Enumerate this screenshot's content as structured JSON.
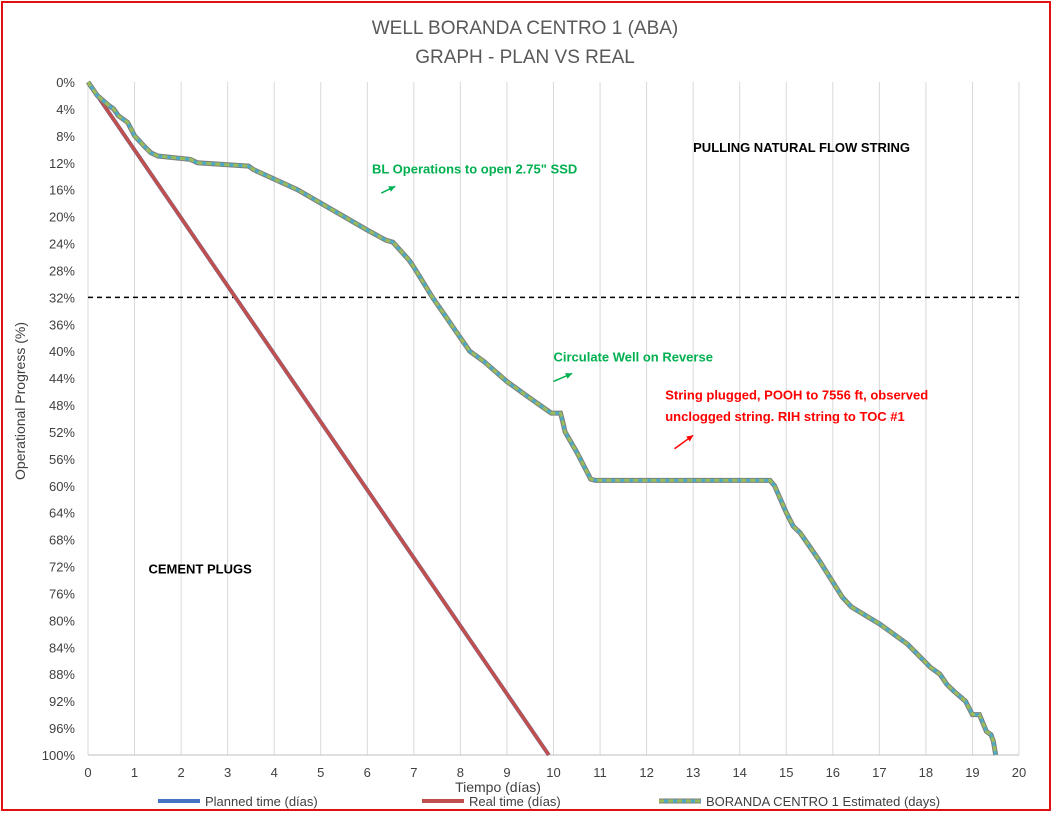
{
  "chart_data": {
    "type": "line",
    "title_lines": [
      "WELL BORANDA CENTRO 1 (ABA)",
      "GRAPH  - PLAN VS REAL"
    ],
    "xlabel": "Tiempo (días)",
    "ylabel": "Operational Progress (%)",
    "xlim": [
      0,
      20
    ],
    "ylim": [
      0,
      100
    ],
    "y_inverted": true,
    "x_ticks": [
      "0",
      "1",
      "2",
      "3",
      "4",
      "5",
      "6",
      "7",
      "8",
      "9",
      "10",
      "11",
      "12",
      "13",
      "14",
      "15",
      "16",
      "17",
      "18",
      "19",
      "20"
    ],
    "y_ticks": [
      "0%",
      "4%",
      "8%",
      "12%",
      "16%",
      "20%",
      "24%",
      "28%",
      "32%",
      "36%",
      "40%",
      "44%",
      "48%",
      "52%",
      "56%",
      "60%",
      "64%",
      "68%",
      "72%",
      "76%",
      "80%",
      "84%",
      "88%",
      "92%",
      "96%",
      "100%"
    ],
    "grid": "vertical",
    "legend_position": "bottom",
    "reference_line": {
      "y": 32,
      "style": "dashed",
      "color": "#000000"
    },
    "series": [
      {
        "name": "Planned time (días)",
        "color": "#4472C4",
        "x": [
          0,
          9.9
        ],
        "y": [
          0,
          100
        ]
      },
      {
        "name": "Real time (días)",
        "color": "#C0504D",
        "x": [
          0,
          9.9
        ],
        "y": [
          0,
          100
        ]
      },
      {
        "name": "BORANDA CENTRO 1 Estimated (days)",
        "color": "#9BBB59",
        "accent": "#4BACC6",
        "x": [
          0,
          0.2,
          0.45,
          0.55,
          0.65,
          0.75,
          0.85,
          1.0,
          1.2,
          1.35,
          1.5,
          2.2,
          2.35,
          3.45,
          3.55,
          4.5,
          5.5,
          6.0,
          6.4,
          6.55,
          6.9,
          7.0,
          7.4,
          7.75,
          7.9,
          8.2,
          8.5,
          9.0,
          9.5,
          9.95,
          10.15,
          10.2,
          10.25,
          10.5,
          10.8,
          10.9,
          14.65,
          14.75,
          15.0,
          15.15,
          15.3,
          15.7,
          16.2,
          16.4,
          17.0,
          17.2,
          17.6,
          18.1,
          18.3,
          18.45,
          18.6,
          18.85,
          19.0,
          19.15,
          19.3,
          19.4,
          19.45,
          19.5
        ],
        "y": [
          0,
          2,
          3.5,
          4,
          5,
          5.5,
          6,
          8,
          9.5,
          10.5,
          11,
          11.5,
          12,
          12.5,
          13,
          16,
          20,
          22,
          23.5,
          23.8,
          26.5,
          27.5,
          32,
          35.5,
          37,
          40,
          41.5,
          44.5,
          47,
          49.2,
          49.2,
          50.5,
          52,
          55,
          59,
          59.2,
          59.2,
          60,
          64,
          66,
          67,
          71,
          76.5,
          78,
          80.5,
          81.5,
          83.5,
          87,
          88,
          89.5,
          90.5,
          92,
          94,
          94,
          96.5,
          97,
          98,
          100
        ]
      }
    ],
    "annotations": [
      {
        "text": "BL Operations to open 2.75\" SSD",
        "x": 6.1,
        "y": 13.6,
        "color": "#00B050",
        "arrow_from": [
          6.3,
          16.5
        ],
        "arrow_to": [
          6.6,
          15.5
        ]
      },
      {
        "text": "PULLING NATURAL FLOW STRING",
        "x": 13.0,
        "y": 10.4,
        "color": "#000000"
      },
      {
        "text": "Circulate Well on Reverse",
        "x": 10.0,
        "y": 41.5,
        "color": "#00B050",
        "arrow_from": [
          10.0,
          44.5
        ],
        "arrow_to": [
          10.4,
          43.3
        ]
      },
      {
        "text": "String plugged, POOH to 7556 ft, observed",
        "x": 12.4,
        "y": 47.2,
        "color": "#FF0000"
      },
      {
        "text": "unclogged string. RIH string to TOC #1",
        "x": 12.4,
        "y": 50.4,
        "color": "#FF0000",
        "arrow_from": [
          12.6,
          54.5
        ],
        "arrow_to": [
          13.0,
          52.5
        ]
      },
      {
        "text": "CEMENT PLUGS",
        "x": 1.3,
        "y": 73.0,
        "color": "#000000"
      }
    ]
  }
}
